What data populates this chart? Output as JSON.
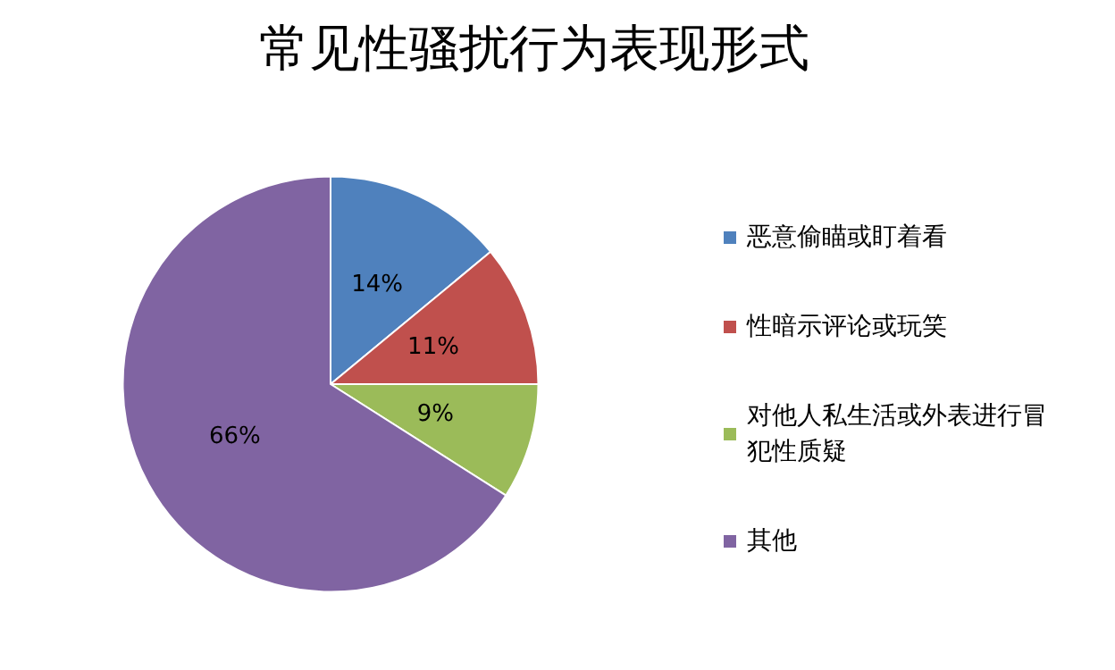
{
  "chart_data": {
    "type": "pie",
    "title": "常见性骚扰行为表现形式",
    "categories": [
      "恶意偷瞄或盯着看",
      "性暗示评论或玩笑",
      "对他人私生活或外表进行冒犯性质疑",
      "其他"
    ],
    "values": [
      14,
      11,
      9,
      66
    ],
    "colors": [
      "#4f81bd",
      "#c0504d",
      "#9bbb59",
      "#8064a2"
    ],
    "value_labels": [
      "14%",
      "11%",
      "9%",
      "66%"
    ],
    "legend": "right"
  }
}
